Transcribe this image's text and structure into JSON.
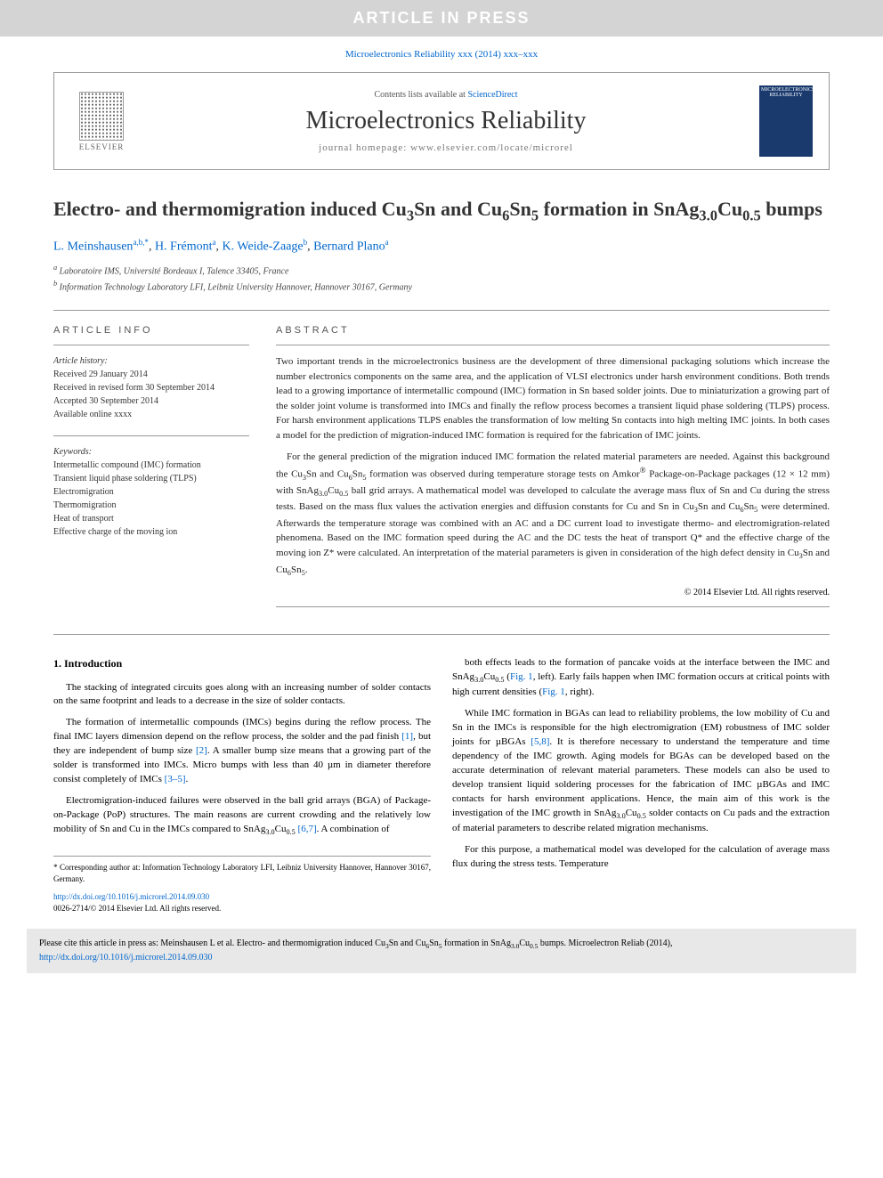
{
  "banner": "ARTICLE IN PRESS",
  "citation_line": "Microelectronics Reliability xxx (2014) xxx–xxx",
  "header": {
    "contents_prefix": "Contents lists available at ",
    "contents_link": "ScienceDirect",
    "journal": "Microelectronics Reliability",
    "homepage_prefix": "journal homepage: ",
    "homepage": "www.elsevier.com/locate/microrel",
    "publisher": "ELSEVIER",
    "cover_text": "MICROELECTRONICS RELIABILITY"
  },
  "title_html": "Electro- and thermomigration induced Cu<sub>3</sub>Sn and Cu<sub>6</sub>Sn<sub>5</sub> formation in SnAg<sub>3.0</sub>Cu<sub>0.5</sub> bumps",
  "authors": [
    {
      "name": "L. Meinshausen",
      "sup": "a,b,*"
    },
    {
      "name": "H. Frémont",
      "sup": "a"
    },
    {
      "name": "K. Weide-Zaage",
      "sup": "b"
    },
    {
      "name": "Bernard Plano",
      "sup": "a"
    }
  ],
  "affiliations": [
    {
      "tag": "a",
      "text": "Laboratoire IMS, Université Bordeaux I, Talence 33405, France"
    },
    {
      "tag": "b",
      "text": "Information Technology Laboratory LFI, Leibniz University Hannover, Hannover 30167, Germany"
    }
  ],
  "article_info_label": "ARTICLE INFO",
  "abstract_label": "ABSTRACT",
  "history": {
    "title": "Article history:",
    "received": "Received 29 January 2014",
    "revised": "Received in revised form 30 September 2014",
    "accepted": "Accepted 30 September 2014",
    "online": "Available online xxxx"
  },
  "keywords": {
    "title": "Keywords:",
    "items": [
      "Intermetallic compound (IMC) formation",
      "Transient liquid phase soldering (TLPS)",
      "Electromigration",
      "Thermomigration",
      "Heat of transport",
      "Effective charge of the moving ion"
    ]
  },
  "abstract": {
    "p1": "Two important trends in the microelectronics business are the development of three dimensional packaging solutions which increase the number electronics components on the same area, and the application of VLSI electronics under harsh environment conditions. Both trends lead to a growing importance of intermetallic compound (IMC) formation in Sn based solder joints. Due to miniaturization a growing part of the solder joint volume is transformed into IMCs and finally the reflow process becomes a transient liquid phase soldering (TLPS) process. For harsh environment applications TLPS enables the transformation of low melting Sn contacts into high melting IMC joints. In both cases a model for the prediction of migration-induced IMC formation is required for the fabrication of IMC joints.",
    "p2_html": "For the general prediction of the migration induced IMC formation the related material parameters are needed. Against this background the Cu<sub>3</sub>Sn and Cu<sub>6</sub>Sn<sub>5</sub> formation was observed during temperature storage tests on Amkor<sup>®</sup> Package-on-Package packages (12 × 12 mm) with SnAg<sub>3.0</sub>Cu<sub>0.5</sub> ball grid arrays. A mathematical model was developed to calculate the average mass flux of Sn and Cu during the stress tests. Based on the mass flux values the activation energies and diffusion constants for Cu and Sn in Cu<sub>3</sub>Sn and Cu<sub>6</sub>Sn<sub>5</sub> were determined. Afterwards the temperature storage was combined with an AC and a DC current load to investigate thermo- and electromigration-related phenomena. Based on the IMC formation speed during the AC and the DC tests the heat of transport Q* and the effective charge of the moving ion Z* were calculated. An interpretation of the material parameters is given in consideration of the high defect density in Cu<sub>3</sub>Sn and Cu<sub>6</sub>Sn<sub>5</sub>."
  },
  "copyright": "© 2014 Elsevier Ltd. All rights reserved.",
  "body": {
    "section_heading": "1. Introduction",
    "left": [
      "The stacking of integrated circuits goes along with an increasing number of solder contacts on the same footprint and leads to a decrease in the size of solder contacts.",
      "The formation of intermetallic compounds (IMCs) begins during the reflow process. The final IMC layers dimension depend on the reflow process, the solder and the pad finish [1], but they are independent of bump size [2]. A smaller bump size means that a growing part of the solder is transformed into IMCs. Micro bumps with less than 40 µm in diameter therefore consist completely of IMCs [3–5].",
      "Electromigration-induced failures were observed in the ball grid arrays (BGA) of Package-on-Package (PoP) structures. The main reasons are current crowding and the relatively low mobility of Sn and Cu in the IMCs compared to SnAg<sub>3.0</sub>Cu<sub>0.5</sub> [6,7]. A combination of"
    ],
    "right": [
      "both effects leads to the formation of pancake voids at the interface between the IMC and SnAg<sub>3.0</sub>Cu<sub>0.5</sub> (Fig. 1, left). Early fails happen when IMC formation occurs at critical points with high current densities (Fig. 1, right).",
      "While IMC formation in BGAs can lead to reliability problems, the low mobility of Cu and Sn in the IMCs is responsible for the high electromigration (EM) robustness of IMC solder joints for µBGAs [5,8]. It is therefore necessary to understand the temperature and time dependency of the IMC growth. Aging models for BGAs can be developed based on the accurate determination of relevant material parameters. These models can also be used to develop transient liquid soldering processes for the fabrication of IMC µBGAs and IMC contacts for harsh environment applications. Hence, the main aim of this work is the investigation of the IMC growth in SnAg<sub>3.0</sub>Cu<sub>0.5</sub> solder contacts on Cu pads and the extraction of material parameters to describe related migration mechanisms.",
      "For this purpose, a mathematical model was developed for the calculation of average mass flux during the stress tests. Temperature"
    ],
    "left_refs": {
      "1": "[1]",
      "2": "[2]",
      "35": "[3–5]",
      "67": "[6,7]"
    },
    "right_refs": {
      "fig1l": "Fig. 1",
      "fig1r": "Fig. 1",
      "58": "[5,8]"
    }
  },
  "corresponding": "* Corresponding author at: Information Technology Laboratory LFI, Leibniz University Hannover, Hannover 30167, Germany.",
  "doi": {
    "url": "http://dx.doi.org/10.1016/j.microrel.2014.09.030",
    "issn": "0026-2714/© 2014 Elsevier Ltd. All rights reserved."
  },
  "footer_cite_html": "Please cite this article in press as: Meinshausen L et al. Electro- and thermomigration induced Cu<sub>3</sub>Sn and Cu<sub>6</sub>Sn<sub>5</sub> formation in SnAg<sub>3.0</sub>Cu<sub>0.5</sub> bumps. Microelectron Reliab (2014), ",
  "footer_cite_link": "http://dx.doi.org/10.1016/j.microrel.2014.09.030",
  "colors": {
    "banner_bg": "#d4d4d4",
    "link": "#0066cc",
    "footer_bg": "#e8e8e8",
    "cover_bg": "#1a3a6e"
  }
}
